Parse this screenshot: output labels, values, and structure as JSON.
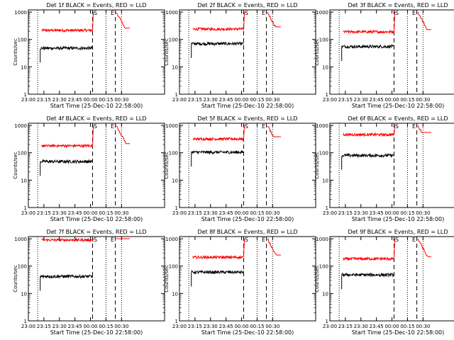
{
  "colors": {
    "background": "#ffffff",
    "axes": "#000000",
    "events": "#000000",
    "lld": "#ff0000"
  },
  "chart_data": [
    {
      "type": "line",
      "title": "Det 1f BLACK = Events, RED = LLD",
      "xlabel": "Start Time (25-Dec-10 22:58:00)",
      "ylabel": "Counts/sec",
      "x_tick_labels": [
        "23:00",
        "23:15",
        "23:30",
        "23:45",
        "00:00",
        "00:15",
        "00:30"
      ],
      "y_tick_labels": [
        "1",
        "10",
        "100",
        "1000"
      ],
      "y_scale": "log",
      "ylim": [
        1,
        1000
      ],
      "markers": [
        "S",
        "E"
      ],
      "events_level": 48,
      "lld_level": 215,
      "lld_before_S": 215
    },
    {
      "type": "line",
      "title": "Det 2f BLACK = Events, RED = LLD",
      "xlabel": "Start Time (25-Dec-10 22:58:00)",
      "ylabel": "Counts/sec",
      "x_tick_labels": [
        "23:00",
        "23:15",
        "23:30",
        "23:45",
        "00:00",
        "00:15",
        "00:30"
      ],
      "y_tick_labels": [
        "1",
        "10",
        "100",
        "1000"
      ],
      "y_scale": "log",
      "ylim": [
        1,
        1000
      ],
      "markers": [
        "S",
        "E"
      ],
      "events_level": 70,
      "lld_level": 240,
      "lld_before_S": 240
    },
    {
      "type": "line",
      "title": "Det 3f BLACK = Events, RED = LLD",
      "xlabel": "Start Time (25-Dec-10 22:58:00)",
      "ylabel": "Counts/sec",
      "x_tick_labels": [
        "23:00",
        "23:15",
        "23:30",
        "23:45",
        "00:00",
        "00:15",
        "00:30"
      ],
      "y_tick_labels": [
        "1",
        "10",
        "100",
        "1000"
      ],
      "y_scale": "log",
      "ylim": [
        1,
        1000
      ],
      "markers": [
        "S",
        "E"
      ],
      "events_level": 55,
      "lld_level": 190,
      "lld_before_S": 190
    },
    {
      "type": "line",
      "title": "Det 4f BLACK = Events, RED = LLD",
      "xlabel": "Start Time (25-Dec-10 22:58:00)",
      "ylabel": "Counts/sec",
      "x_tick_labels": [
        "23:00",
        "23:15",
        "23:30",
        "23:45",
        "00:00",
        "00:15",
        "00:30"
      ],
      "y_tick_labels": [
        "1",
        "10",
        "100",
        "1000"
      ],
      "y_scale": "log",
      "ylim": [
        1,
        1000
      ],
      "markers": [
        "S",
        "E"
      ],
      "events_level": 48,
      "lld_level": 180,
      "lld_before_S": 180
    },
    {
      "type": "line",
      "title": "Det 5f BLACK = Events, RED = LLD",
      "xlabel": "Start Time (25-Dec-10 22:58:00)",
      "ylabel": "Counts/sec",
      "x_tick_labels": [
        "23:00",
        "23:15",
        "23:30",
        "23:45",
        "00:00",
        "00:15",
        "00:30"
      ],
      "y_tick_labels": [
        "1",
        "10",
        "100",
        "1000"
      ],
      "y_scale": "log",
      "ylim": [
        1,
        1000
      ],
      "markers": [
        "S",
        "E"
      ],
      "events_level": 105,
      "lld_level": 320,
      "lld_before_S": 320
    },
    {
      "type": "line",
      "title": "Det 6f BLACK = Events, RED = LLD",
      "xlabel": "Start Time (25-Dec-10 22:58:00)",
      "ylabel": "Counts/sec",
      "x_tick_labels": [
        "23:00",
        "23:15",
        "23:30",
        "23:45",
        "00:00",
        "00:15",
        "00:30"
      ],
      "y_tick_labels": [
        "1",
        "10",
        "100",
        "1000"
      ],
      "y_scale": "log",
      "ylim": [
        1,
        1000
      ],
      "markers": [
        "S",
        "E"
      ],
      "events_level": 80,
      "lld_level": 460,
      "lld_before_S": 460
    },
    {
      "type": "line",
      "title": "Det 7f BLACK = Events, RED = LLD",
      "xlabel": "Start Time (25-Dec-10 22:58:00)",
      "ylabel": "Counts/sec",
      "x_tick_labels": [
        "23:00",
        "23:15",
        "23:30",
        "23:45",
        "00:00",
        "00:15",
        "00:30"
      ],
      "y_tick_labels": [
        "1",
        "10",
        "100",
        "1000"
      ],
      "y_scale": "log",
      "ylim": [
        1,
        1000
      ],
      "markers": [
        "S",
        "E"
      ],
      "events_level": 42,
      "lld_level": 900,
      "lld_before_S": 900
    },
    {
      "type": "line",
      "title": "Det 8f BLACK = Events, RED = LLD",
      "xlabel": "Start Time (25-Dec-10 22:58:00)",
      "ylabel": "Counts/sec",
      "x_tick_labels": [
        "23:00",
        "23:15",
        "23:30",
        "23:45",
        "00:00",
        "00:15",
        "00:30"
      ],
      "y_tick_labels": [
        "1",
        "10",
        "100",
        "1000"
      ],
      "y_scale": "log",
      "ylim": [
        1,
        1000
      ],
      "markers": [
        "S",
        "E"
      ],
      "events_level": 60,
      "lld_level": 210,
      "lld_before_S": 210
    },
    {
      "type": "line",
      "title": "Det 9f BLACK = Events, RED = LLD",
      "xlabel": "Start Time (25-Dec-10 22:58:00)",
      "ylabel": "Counts/sec",
      "x_tick_labels": [
        "23:00",
        "23:15",
        "23:30",
        "23:45",
        "00:00",
        "00:15",
        "00:30"
      ],
      "y_tick_labels": [
        "1",
        "10",
        "100",
        "1000"
      ],
      "y_scale": "log",
      "ylim": [
        1,
        1000
      ],
      "markers": [
        "S",
        "E"
      ],
      "events_level": 48,
      "lld_level": 185,
      "lld_before_S": 185
    }
  ]
}
